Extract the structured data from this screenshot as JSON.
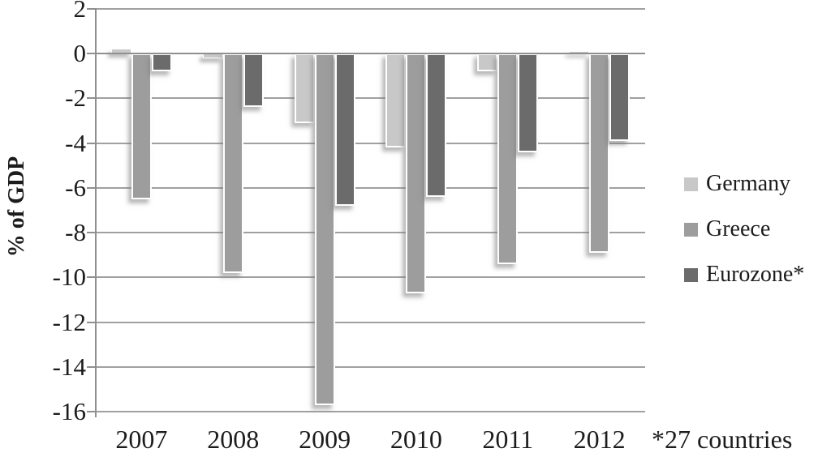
{
  "figure": {
    "background": "#ffffff",
    "text_color": "#1c1c1c",
    "gridline_color": "#a0a0a0",
    "axis_color": "#8f8f8f"
  },
  "chart_data": {
    "type": "bar",
    "title": "",
    "xlabel": "",
    "ylabel": "% of GDP",
    "footnote": "*27 countries",
    "categories": [
      "2007",
      "2008",
      "2009",
      "2010",
      "2011",
      "2012"
    ],
    "series": [
      {
        "name": "Germany",
        "color": "#c8c8c8",
        "values": [
          0.2,
          -0.2,
          -3.1,
          -4.2,
          -0.8,
          0.1
        ]
      },
      {
        "name": "Greece",
        "color": "#9d9d9d",
        "values": [
          -6.5,
          -9.8,
          -15.7,
          -10.7,
          -9.4,
          -8.9
        ]
      },
      {
        "name": "Eurozone*",
        "color": "#6b6b6b",
        "values": [
          -0.8,
          -2.4,
          -6.8,
          -6.4,
          -4.4,
          -3.9
        ]
      }
    ],
    "ylim": [
      -16,
      2
    ],
    "ytick_step": 2,
    "yticks": [
      2,
      0,
      -2,
      -4,
      -6,
      -8,
      -10,
      -12,
      -14,
      -16
    ],
    "grid": true,
    "legend_position": "right",
    "bar_outline_color": "#ffffff"
  }
}
